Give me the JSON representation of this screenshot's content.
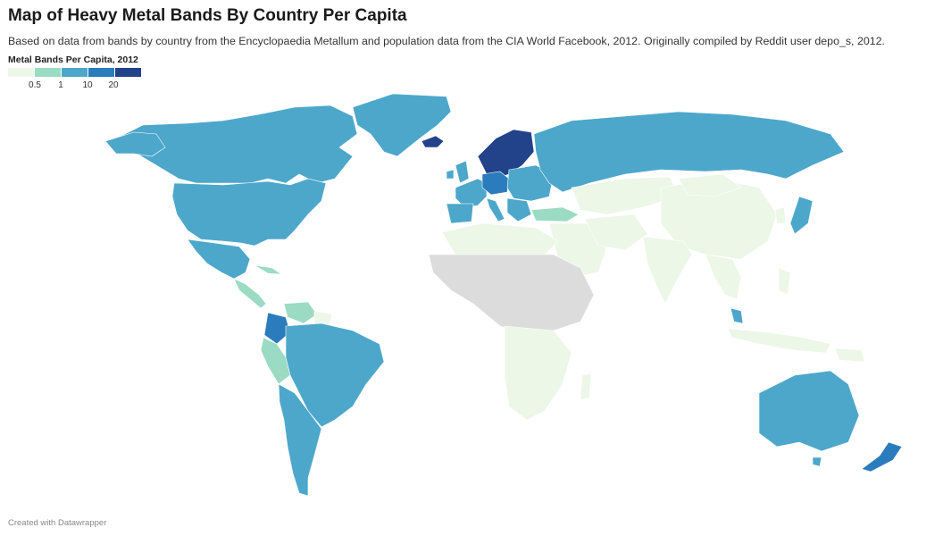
{
  "header": {
    "title": "Map of Heavy Metal Bands By Country Per Capita",
    "description": "Based on data from bands by country from the Encyclopaedia Metallum and population data from the CIA World Facebook, 2012. Originally compiled by Reddit user depo_s, 2012."
  },
  "legend": {
    "title": "Metal Bands Per Capita, 2012",
    "ticks": [
      "0.5",
      "1",
      "10",
      "20"
    ],
    "colors": [
      "#ecf7e7",
      "#9bdbc3",
      "#4da7cb",
      "#2b7cbd",
      "#22428a"
    ]
  },
  "map_colors": {
    "no_data": "#dcdcdc"
  },
  "footer": {
    "credit": "Created with Datawrapper"
  }
}
